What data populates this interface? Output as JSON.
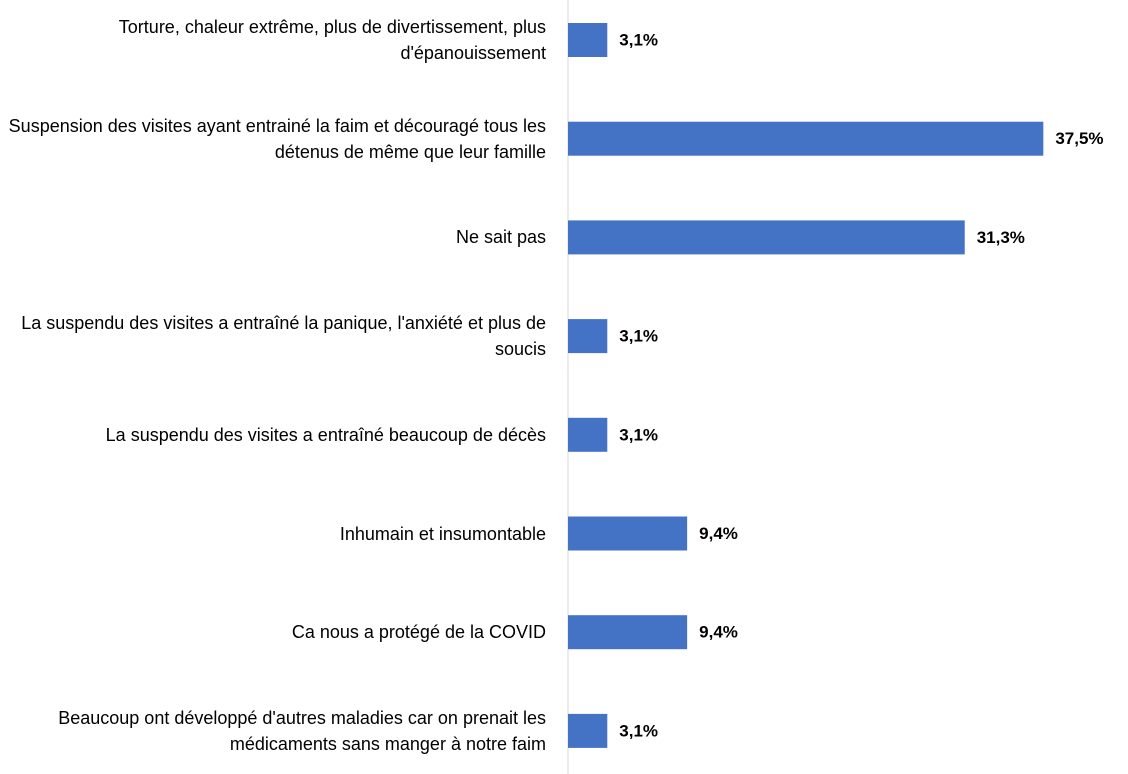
{
  "chart_data": {
    "type": "bar",
    "orientation": "horizontal",
    "categories": [
      "Torture, chaleur extrême, plus de divertissement, plus d'épanouissement",
      "Suspension des visites ayant entrainé la faim et découragé tous les détenus de même que leur famille",
      "Ne sait pas",
      "La suspendu des visites a entraîné la panique, l'anxiété et plus de soucis",
      "La suspendu des visites a entraîné beaucoup de décès",
      "Inhumain et insumontable",
      "Ca nous a protégé de la COVID",
      "Beaucoup ont développé d'autres maladies car on prenait les médicaments sans manger à notre faim"
    ],
    "values": [
      3.1,
      37.5,
      31.3,
      3.1,
      3.1,
      9.4,
      9.4,
      3.1
    ],
    "value_labels": [
      "3,1%",
      "37,5%",
      "31,3%",
      "3,1%",
      "3,1%",
      "9,4%",
      "9,4%",
      "3,1%"
    ],
    "color": "#4472c4",
    "xlim": [
      0,
      40
    ]
  }
}
